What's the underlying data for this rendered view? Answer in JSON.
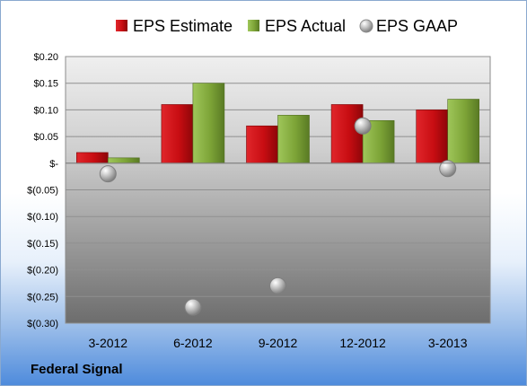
{
  "company": "Federal Signal",
  "colors": {
    "estimate": "#c80d12",
    "actual": "#7da437",
    "gaap": "#a8a8a8"
  },
  "chart_data": {
    "type": "bar",
    "categories": [
      "3-2012",
      "6-2012",
      "9-2012",
      "12-2012",
      "3-2013"
    ],
    "series": [
      {
        "name": "EPS Estimate",
        "kind": "bar",
        "values": [
          0.02,
          0.11,
          0.07,
          0.11,
          0.1
        ]
      },
      {
        "name": "EPS Actual",
        "kind": "bar",
        "values": [
          0.01,
          0.15,
          0.09,
          0.08,
          0.12
        ]
      },
      {
        "name": "EPS GAAP",
        "kind": "marker",
        "values": [
          -0.02,
          -0.27,
          -0.23,
          0.07,
          -0.01
        ]
      }
    ],
    "ylim": [
      -0.3,
      0.2
    ],
    "yticks": [
      0.2,
      0.15,
      0.1,
      0.05,
      0.0,
      -0.05,
      -0.1,
      -0.15,
      -0.2,
      -0.25,
      -0.3
    ],
    "yticklabels": [
      "$0.20",
      "$0.15",
      "$0.10",
      "$0.05",
      "$-",
      "$(0.05)",
      "$(0.10)",
      "$(0.15)",
      "$(0.20)",
      "$(0.25)",
      "$(0.30)"
    ],
    "grid": true,
    "legend": "top"
  }
}
